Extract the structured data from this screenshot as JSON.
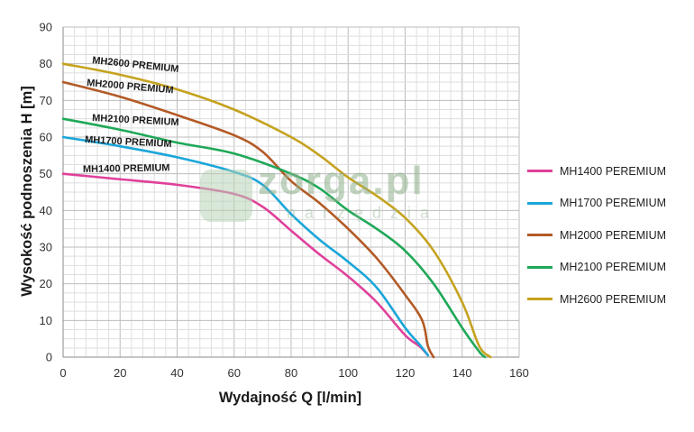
{
  "chart_data": {
    "type": "line",
    "xlabel": "Wydajność Q [l/min]",
    "ylabel": "Wysokość podnoszenia H [m]",
    "xlim": [
      0,
      160
    ],
    "ylim": [
      0,
      90
    ],
    "xticks": [
      "0",
      "20",
      "40",
      "60",
      "80",
      "100",
      "120",
      "140",
      "160"
    ],
    "yticks": [
      "0",
      "10",
      "20",
      "30",
      "40",
      "50",
      "60",
      "70",
      "80",
      "90"
    ],
    "grid": true,
    "legend_position": "right",
    "series": [
      {
        "name": "MH1400 PEREMIUM",
        "inline_label": "MH1400 PREMIUM",
        "color": "#e0409a",
        "points": [
          [
            0,
            50
          ],
          [
            20,
            48.5
          ],
          [
            40,
            47
          ],
          [
            60,
            44.5
          ],
          [
            70,
            41
          ],
          [
            80,
            34.5
          ],
          [
            90,
            28
          ],
          [
            100,
            22
          ],
          [
            110,
            15
          ],
          [
            120,
            6
          ],
          [
            125,
            3
          ],
          [
            128,
            0.5
          ]
        ]
      },
      {
        "name": "MH1700 PEREMIUM",
        "inline_label": "MH1700 PREMIUM",
        "color": "#1aa6d9",
        "points": [
          [
            0,
            60
          ],
          [
            20,
            57.5
          ],
          [
            40,
            54.5
          ],
          [
            60,
            50.5
          ],
          [
            70,
            47
          ],
          [
            80,
            39
          ],
          [
            90,
            32
          ],
          [
            100,
            26
          ],
          [
            110,
            19
          ],
          [
            120,
            8
          ],
          [
            125,
            3.5
          ],
          [
            128,
            0.5
          ]
        ]
      },
      {
        "name": "MH2000 PEREMIUM",
        "inline_label": "MH2000 PREMIUM",
        "color": "#b35a26",
        "points": [
          [
            0,
            75
          ],
          [
            20,
            71
          ],
          [
            40,
            66
          ],
          [
            60,
            60.5
          ],
          [
            70,
            56
          ],
          [
            80,
            48
          ],
          [
            90,
            42
          ],
          [
            100,
            35
          ],
          [
            110,
            27
          ],
          [
            120,
            17
          ],
          [
            126,
            10
          ],
          [
            128,
            3
          ],
          [
            130,
            0
          ]
        ]
      },
      {
        "name": "MH2100 PEREMIUM",
        "inline_label": "MH2100 PREMIUM",
        "color": "#1fa858",
        "points": [
          [
            0,
            65
          ],
          [
            20,
            62
          ],
          [
            40,
            58.5
          ],
          [
            60,
            55.5
          ],
          [
            80,
            50
          ],
          [
            90,
            46
          ],
          [
            100,
            40
          ],
          [
            110,
            35
          ],
          [
            120,
            29
          ],
          [
            130,
            20
          ],
          [
            140,
            8
          ],
          [
            146,
            1.5
          ],
          [
            148,
            0
          ]
        ]
      },
      {
        "name": "MH2600 PEREMIUM",
        "inline_label": "MH2600 PREMIUM",
        "color": "#c5a21f",
        "points": [
          [
            0,
            80
          ],
          [
            20,
            77
          ],
          [
            40,
            73
          ],
          [
            60,
            67.5
          ],
          [
            80,
            60
          ],
          [
            90,
            55
          ],
          [
            100,
            49
          ],
          [
            110,
            44
          ],
          [
            120,
            38
          ],
          [
            130,
            29
          ],
          [
            140,
            15
          ],
          [
            146,
            3
          ],
          [
            150,
            0
          ]
        ]
      }
    ]
  },
  "watermark": {
    "brand": "zorga.pl",
    "sub": "narzędzia"
  }
}
